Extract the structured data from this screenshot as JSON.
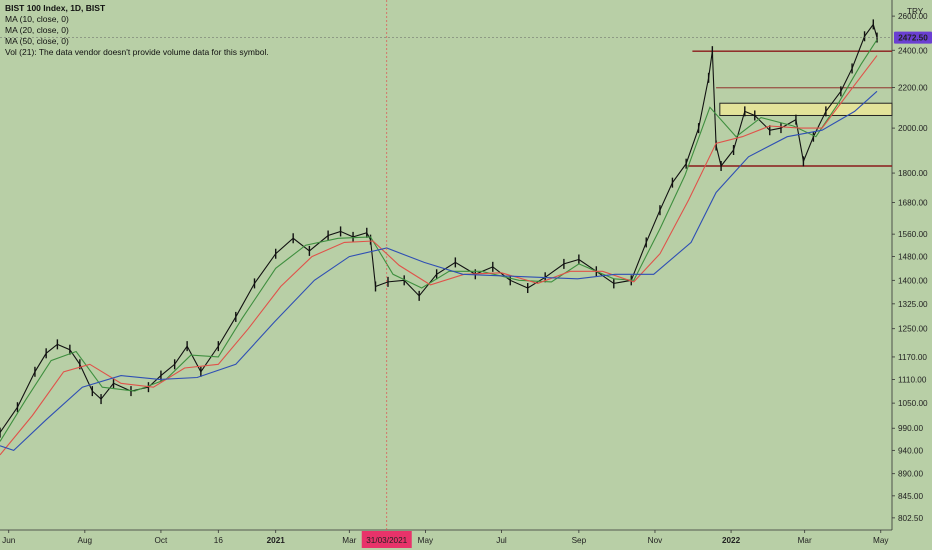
{
  "legend": {
    "title": "BIST 100 Index, 1D, BIST",
    "ma10": "MA (10, close, 0)",
    "ma20": "MA (20, close, 0)",
    "ma50": "MA (50, close, 0)",
    "vol": "Vol (21): The data vendor doesn't provide volume data for this symbol."
  },
  "currency": "TRY",
  "colors": {
    "background": "#b8cfa6",
    "ma10": "#3f8f3f",
    "ma20": "#e0524a",
    "ma50": "#2f4fb4",
    "hline": "#8b1a1a",
    "zone_fill": "#e3e39a",
    "zone_stroke": "#222222",
    "price_badge": "#6a3fd2",
    "date_badge": "#e8336a",
    "crosshair": "#e05050"
  },
  "chart_data": {
    "type": "line",
    "title": "BIST 100 Index, 1D, BIST",
    "y_scale": "log",
    "ylim": [
      780,
      2700
    ],
    "y_ticks": [
      802.5,
      845.0,
      890.0,
      940.0,
      990.0,
      1050.0,
      1110.0,
      1170.0,
      1250.0,
      1325.0,
      1400.0,
      1480.0,
      1560.0,
      1680.0,
      1800.0,
      2000.0,
      2200.0,
      2400.0,
      2600.0
    ],
    "y_tick_labels": [
      "802.50",
      "845.00",
      "890.00",
      "940.00",
      "990.00",
      "1050.00",
      "1110.00",
      "1170.00",
      "1250.00",
      "1325.00",
      "1400.00",
      "1480.00",
      "1560.00",
      "1680.00",
      "1800.00",
      "2000.00",
      "2200.00",
      "2400.00",
      "2600.00"
    ],
    "x_ticks": [
      {
        "date": "2020-06-01",
        "label": "Jun",
        "bold": false
      },
      {
        "date": "2020-08-01",
        "label": "Aug",
        "bold": false
      },
      {
        "date": "2020-10-01",
        "label": "Oct",
        "bold": false
      },
      {
        "date": "2020-11-16",
        "label": "16",
        "bold": false
      },
      {
        "date": "2021-01-01",
        "label": "2021",
        "bold": true
      },
      {
        "date": "2021-03-01",
        "label": "Mar",
        "bold": false
      },
      {
        "date": "2021-05-01",
        "label": "May",
        "bold": false
      },
      {
        "date": "2021-07-01",
        "label": "Jul",
        "bold": false
      },
      {
        "date": "2021-09-01",
        "label": "Sep",
        "bold": false
      },
      {
        "date": "2021-11-01",
        "label": "Nov",
        "bold": false
      },
      {
        "date": "2022-01-01",
        "label": "2022",
        "bold": true
      },
      {
        "date": "2022-03-01",
        "label": "Mar",
        "bold": false
      },
      {
        "date": "2022-05-01",
        "label": "May",
        "bold": false
      }
    ],
    "xlim": [
      "2020-05-25",
      "2022-05-10"
    ],
    "last_price": 2472.5,
    "last_price_label": "2472.50",
    "crosshair_date": "2021-03-31",
    "crosshair_label": "31/03/2021",
    "crosshair_price": 2472.5,
    "horizontal_lines": [
      {
        "price": 2395,
        "from": "2021-12-01",
        "to": "2022-05-10"
      },
      {
        "price": 2198,
        "from": "2021-12-20",
        "to": "2022-05-10"
      },
      {
        "price": 1830,
        "from": "2021-11-27",
        "to": "2022-05-10"
      }
    ],
    "zones": [
      {
        "from_price": 2060,
        "to_price": 2120,
        "from": "2021-12-23",
        "to": "2022-05-10"
      }
    ],
    "price_points": [
      [
        "2020-05-25",
        980
      ],
      [
        "2020-06-08",
        1040
      ],
      [
        "2020-06-22",
        1130
      ],
      [
        "2020-07-01",
        1180
      ],
      [
        "2020-07-10",
        1205
      ],
      [
        "2020-07-20",
        1190
      ],
      [
        "2020-07-28",
        1150
      ],
      [
        "2020-08-07",
        1080
      ],
      [
        "2020-08-14",
        1060
      ],
      [
        "2020-08-24",
        1100
      ],
      [
        "2020-09-07",
        1080
      ],
      [
        "2020-09-21",
        1090
      ],
      [
        "2020-10-01",
        1120
      ],
      [
        "2020-10-12",
        1150
      ],
      [
        "2020-10-22",
        1200
      ],
      [
        "2020-11-02",
        1130
      ],
      [
        "2020-11-16",
        1200
      ],
      [
        "2020-11-30",
        1285
      ],
      [
        "2020-12-15",
        1390
      ],
      [
        "2021-01-01",
        1490
      ],
      [
        "2021-01-15",
        1545
      ],
      [
        "2021-01-28",
        1500
      ],
      [
        "2021-02-12",
        1555
      ],
      [
        "2021-02-22",
        1570
      ],
      [
        "2021-03-04",
        1550
      ],
      [
        "2021-03-15",
        1565
      ],
      [
        "2021-03-18",
        1540
      ],
      [
        "2021-03-22",
        1380
      ],
      [
        "2021-04-01",
        1395
      ],
      [
        "2021-04-14",
        1400
      ],
      [
        "2021-04-26",
        1350
      ],
      [
        "2021-05-10",
        1420
      ],
      [
        "2021-05-25",
        1460
      ],
      [
        "2021-06-10",
        1420
      ],
      [
        "2021-06-24",
        1445
      ],
      [
        "2021-07-08",
        1400
      ],
      [
        "2021-07-22",
        1375
      ],
      [
        "2021-08-05",
        1410
      ],
      [
        "2021-08-20",
        1455
      ],
      [
        "2021-09-01",
        1470
      ],
      [
        "2021-09-15",
        1430
      ],
      [
        "2021-09-29",
        1390
      ],
      [
        "2021-10-13",
        1400
      ],
      [
        "2021-10-25",
        1530
      ],
      [
        "2021-11-05",
        1650
      ],
      [
        "2021-11-15",
        1760
      ],
      [
        "2021-11-26",
        1840
      ],
      [
        "2021-12-06",
        2000
      ],
      [
        "2021-12-14",
        2250
      ],
      [
        "2021-12-17",
        2395
      ],
      [
        "2021-12-20",
        1920
      ],
      [
        "2021-12-24",
        1830
      ],
      [
        "2022-01-03",
        1900
      ],
      [
        "2022-01-12",
        2080
      ],
      [
        "2022-01-20",
        2060
      ],
      [
        "2022-02-01",
        1990
      ],
      [
        "2022-02-10",
        2000
      ],
      [
        "2022-02-22",
        2040
      ],
      [
        "2022-02-28",
        1850
      ],
      [
        "2022-03-08",
        1960
      ],
      [
        "2022-03-18",
        2080
      ],
      [
        "2022-03-30",
        2180
      ],
      [
        "2022-04-08",
        2300
      ],
      [
        "2022-04-18",
        2480
      ],
      [
        "2022-04-25",
        2550
      ],
      [
        "2022-04-28",
        2472.5
      ]
    ],
    "series": [
      {
        "name": "MA (10, close, 0)",
        "key": "ma10",
        "points": [
          [
            "2020-05-25",
            960
          ],
          [
            "2020-06-15",
            1060
          ],
          [
            "2020-07-05",
            1160
          ],
          [
            "2020-07-25",
            1185
          ],
          [
            "2020-08-15",
            1090
          ],
          [
            "2020-09-10",
            1080
          ],
          [
            "2020-10-05",
            1110
          ],
          [
            "2020-10-25",
            1175
          ],
          [
            "2020-11-16",
            1170
          ],
          [
            "2020-12-05",
            1280
          ],
          [
            "2021-01-01",
            1440
          ],
          [
            "2021-01-25",
            1520
          ],
          [
            "2021-02-20",
            1545
          ],
          [
            "2021-03-18",
            1550
          ],
          [
            "2021-04-05",
            1420
          ],
          [
            "2021-04-28",
            1375
          ],
          [
            "2021-05-20",
            1430
          ],
          [
            "2021-06-15",
            1430
          ],
          [
            "2021-07-15",
            1400
          ],
          [
            "2021-08-10",
            1395
          ],
          [
            "2021-09-01",
            1455
          ],
          [
            "2021-09-29",
            1405
          ],
          [
            "2021-10-15",
            1400
          ],
          [
            "2021-11-05",
            1580
          ],
          [
            "2021-11-25",
            1790
          ],
          [
            "2021-12-15",
            2100
          ],
          [
            "2022-01-05",
            1960
          ],
          [
            "2022-01-25",
            2050
          ],
          [
            "2022-02-20",
            2010
          ],
          [
            "2022-03-10",
            1960
          ],
          [
            "2022-03-28",
            2120
          ],
          [
            "2022-04-15",
            2320
          ],
          [
            "2022-04-28",
            2460
          ]
        ]
      },
      {
        "name": "MA (20, close, 0)",
        "key": "ma20",
        "points": [
          [
            "2020-05-25",
            930
          ],
          [
            "2020-06-20",
            1020
          ],
          [
            "2020-07-15",
            1130
          ],
          [
            "2020-08-05",
            1150
          ],
          [
            "2020-08-30",
            1100
          ],
          [
            "2020-09-25",
            1090
          ],
          [
            "2020-10-20",
            1140
          ],
          [
            "2020-11-16",
            1150
          ],
          [
            "2020-12-10",
            1250
          ],
          [
            "2021-01-05",
            1380
          ],
          [
            "2021-01-30",
            1480
          ],
          [
            "2021-02-25",
            1530
          ],
          [
            "2021-03-20",
            1535
          ],
          [
            "2021-04-10",
            1450
          ],
          [
            "2021-05-05",
            1385
          ],
          [
            "2021-06-01",
            1420
          ],
          [
            "2021-07-01",
            1425
          ],
          [
            "2021-07-30",
            1390
          ],
          [
            "2021-08-25",
            1430
          ],
          [
            "2021-09-20",
            1430
          ],
          [
            "2021-10-15",
            1395
          ],
          [
            "2021-11-05",
            1490
          ],
          [
            "2021-11-28",
            1690
          ],
          [
            "2021-12-20",
            1930
          ],
          [
            "2022-01-10",
            1960
          ],
          [
            "2022-02-01",
            2010
          ],
          [
            "2022-02-25",
            2000
          ],
          [
            "2022-03-15",
            2000
          ],
          [
            "2022-04-05",
            2170
          ],
          [
            "2022-04-28",
            2370
          ]
        ]
      },
      {
        "name": "MA (50, close, 0)",
        "key": "ma50",
        "points": [
          [
            "2020-05-25",
            950
          ],
          [
            "2020-06-05",
            940
          ],
          [
            "2020-07-01",
            1010
          ],
          [
            "2020-07-30",
            1090
          ],
          [
            "2020-08-30",
            1120
          ],
          [
            "2020-09-30",
            1110
          ],
          [
            "2020-10-30",
            1115
          ],
          [
            "2020-11-30",
            1150
          ],
          [
            "2020-12-31",
            1270
          ],
          [
            "2021-02-01",
            1400
          ],
          [
            "2021-03-01",
            1480
          ],
          [
            "2021-03-31",
            1510
          ],
          [
            "2021-04-30",
            1460
          ],
          [
            "2021-05-31",
            1420
          ],
          [
            "2021-06-30",
            1415
          ],
          [
            "2021-07-31",
            1410
          ],
          [
            "2021-08-31",
            1405
          ],
          [
            "2021-09-30",
            1420
          ],
          [
            "2021-10-31",
            1420
          ],
          [
            "2021-11-30",
            1530
          ],
          [
            "2021-12-20",
            1720
          ],
          [
            "2022-01-15",
            1870
          ],
          [
            "2022-02-15",
            1960
          ],
          [
            "2022-03-15",
            1990
          ],
          [
            "2022-04-10",
            2080
          ],
          [
            "2022-04-28",
            2180
          ]
        ]
      }
    ]
  }
}
